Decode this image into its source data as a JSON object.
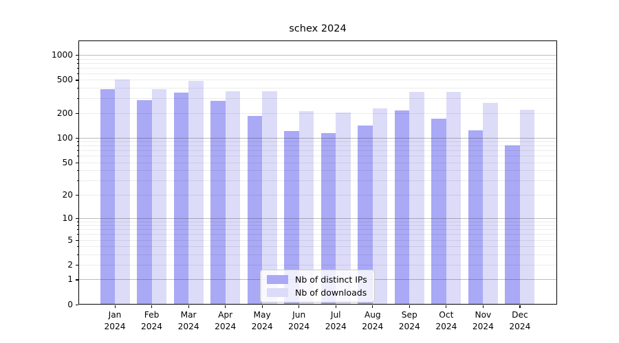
{
  "chart_data": {
    "type": "bar",
    "title": "schex 2024",
    "categories": [
      "Jan",
      "Feb",
      "Mar",
      "Apr",
      "May",
      "Jun",
      "Jul",
      "Aug",
      "Sep",
      "Oct",
      "Nov",
      "Dec"
    ],
    "x_tick_line2": "2024",
    "series": [
      {
        "name": "Nb of distinct IPs",
        "color": "#a9a9f6",
        "values": [
          390,
          283,
          353,
          277,
          185,
          121,
          114,
          142,
          214,
          171,
          124,
          81
        ]
      },
      {
        "name": "Nb of downloads",
        "color": "#dcdcf9",
        "values": [
          505,
          390,
          486,
          362,
          365,
          212,
          202,
          228,
          360,
          357,
          266,
          217
        ]
      }
    ],
    "yscale": "log1p",
    "yticks": [
      0,
      1,
      2,
      5,
      10,
      20,
      50,
      100,
      200,
      500,
      1000
    ],
    "ylim": [
      0,
      1490
    ],
    "grid": true,
    "legend_position": "lower center",
    "legend_entries": [
      "Nb of distinct IPs",
      "Nb of downloads"
    ]
  },
  "colors": {
    "bar_distinct_ips": "#a9a9f6",
    "bar_downloads": "#dcdcf9",
    "grid_major": "#b0b0b0",
    "grid_minor": "#ebebeb",
    "spine": "#000000",
    "background": "#ffffff"
  }
}
